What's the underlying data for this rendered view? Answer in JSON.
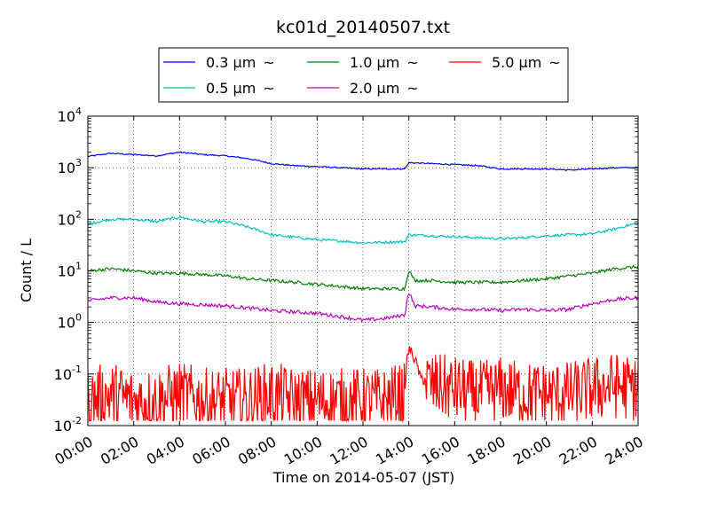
{
  "chart_data": {
    "type": "line",
    "title": "kc01d_20140507.txt",
    "xlabel": "Time on 2014-05-07 (JST)",
    "ylabel": "Count / L",
    "yscale": "log",
    "xlim": [
      "00:00",
      "24:00"
    ],
    "ylim": [
      0.01,
      10000
    ],
    "grid": true,
    "legend_position": "top (above plot)",
    "x_ticks": [
      "00:00",
      "02:00",
      "04:00",
      "06:00",
      "08:00",
      "10:00",
      "12:00",
      "14:00",
      "16:00",
      "18:00",
      "20:00",
      "22:00",
      "24:00"
    ],
    "y_ticks": [
      {
        "base": "10",
        "exp": "-2"
      },
      {
        "base": "10",
        "exp": "-1"
      },
      {
        "base": "10",
        "exp": "0"
      },
      {
        "base": "10",
        "exp": "1"
      },
      {
        "base": "10",
        "exp": "2"
      },
      {
        "base": "10",
        "exp": "3"
      },
      {
        "base": "10",
        "exp": "4"
      }
    ],
    "legend_suffix": "~",
    "series": [
      {
        "name": "0.3 μm",
        "color": "#0000ff",
        "x": [
          "00:00",
          "01:00",
          "02:00",
          "03:00",
          "04:00",
          "05:00",
          "06:00",
          "07:00",
          "08:00",
          "09:00",
          "10:00",
          "11:00",
          "12:00",
          "13:00",
          "13:50",
          "14:00",
          "15:00",
          "16:00",
          "17:00",
          "18:00",
          "19:00",
          "20:00",
          "21:00",
          "22:00",
          "23:00",
          "24:00"
        ],
        "y": [
          1650,
          1900,
          1800,
          1700,
          2000,
          1800,
          1700,
          1500,
          1200,
          1100,
          1050,
          1000,
          950,
          950,
          950,
          1250,
          1200,
          1150,
          1100,
          950,
          950,
          950,
          900,
          950,
          1000,
          1000
        ]
      },
      {
        "name": "0.5 μm",
        "color": "#00bfbf",
        "x": [
          "00:00",
          "01:00",
          "02:00",
          "03:00",
          "04:00",
          "05:00",
          "06:00",
          "07:00",
          "08:00",
          "09:00",
          "10:00",
          "11:00",
          "12:00",
          "13:00",
          "13:50",
          "14:00",
          "15:00",
          "16:00",
          "17:00",
          "18:00",
          "19:00",
          "20:00",
          "21:00",
          "22:00",
          "23:00",
          "24:00"
        ],
        "y": [
          80,
          100,
          100,
          90,
          110,
          90,
          90,
          70,
          50,
          45,
          40,
          38,
          35,
          36,
          37,
          50,
          48,
          46,
          44,
          42,
          44,
          48,
          50,
          52,
          65,
          85
        ]
      },
      {
        "name": "1.0 μm",
        "color": "#008000",
        "x": [
          "00:00",
          "01:00",
          "02:00",
          "03:00",
          "04:00",
          "05:00",
          "06:00",
          "07:00",
          "08:00",
          "09:00",
          "10:00",
          "11:00",
          "12:00",
          "13:00",
          "13:50",
          "14:00",
          "14:15",
          "15:00",
          "16:00",
          "17:00",
          "18:00",
          "19:00",
          "20:00",
          "21:00",
          "22:00",
          "23:00",
          "24:00"
        ],
        "y": [
          10,
          11,
          10,
          9,
          9,
          8.5,
          8,
          7,
          6.5,
          6,
          5.5,
          5,
          4.5,
          4.5,
          4.5,
          10,
          6.5,
          6.5,
          6,
          6,
          6,
          6.5,
          7,
          8,
          9,
          11,
          12
        ]
      },
      {
        "name": "2.0 μm",
        "color": "#bf00bf",
        "x": [
          "00:00",
          "01:00",
          "02:00",
          "03:00",
          "04:00",
          "05:00",
          "06:00",
          "07:00",
          "08:00",
          "09:00",
          "10:00",
          "11:00",
          "12:00",
          "13:00",
          "13:50",
          "14:00",
          "14:15",
          "15:00",
          "16:00",
          "17:00",
          "18:00",
          "19:00",
          "20:00",
          "21:00",
          "22:00",
          "23:00",
          "24:00"
        ],
        "y": [
          2.6,
          3,
          3,
          2.5,
          2.3,
          2.2,
          2.1,
          1.9,
          1.7,
          1.6,
          1.5,
          1.3,
          1.1,
          1.2,
          1.4,
          3.8,
          2.1,
          2,
          1.8,
          1.8,
          1.7,
          1.8,
          1.7,
          1.8,
          2.3,
          2.8,
          3
        ]
      },
      {
        "name": "5.0 μm",
        "color": "#ff0000",
        "x": [
          "00:00",
          "01:00",
          "02:00",
          "03:00",
          "04:00",
          "05:00",
          "06:00",
          "07:00",
          "08:00",
          "09:00",
          "10:00",
          "11:00",
          "12:00",
          "13:00",
          "13:50",
          "14:00",
          "14:30",
          "15:00",
          "16:00",
          "17:00",
          "18:00",
          "19:00",
          "20:00",
          "21:00",
          "22:00",
          "23:00",
          "24:00"
        ],
        "y": [
          0.03,
          0.04,
          0.03,
          0.03,
          0.04,
          0.03,
          0.03,
          0.03,
          0.04,
          0.03,
          0.03,
          0.03,
          0.03,
          0.03,
          0.04,
          0.3,
          0.08,
          0.06,
          0.05,
          0.04,
          0.05,
          0.04,
          0.04,
          0.04,
          0.05,
          0.06,
          0.05
        ]
      }
    ]
  }
}
